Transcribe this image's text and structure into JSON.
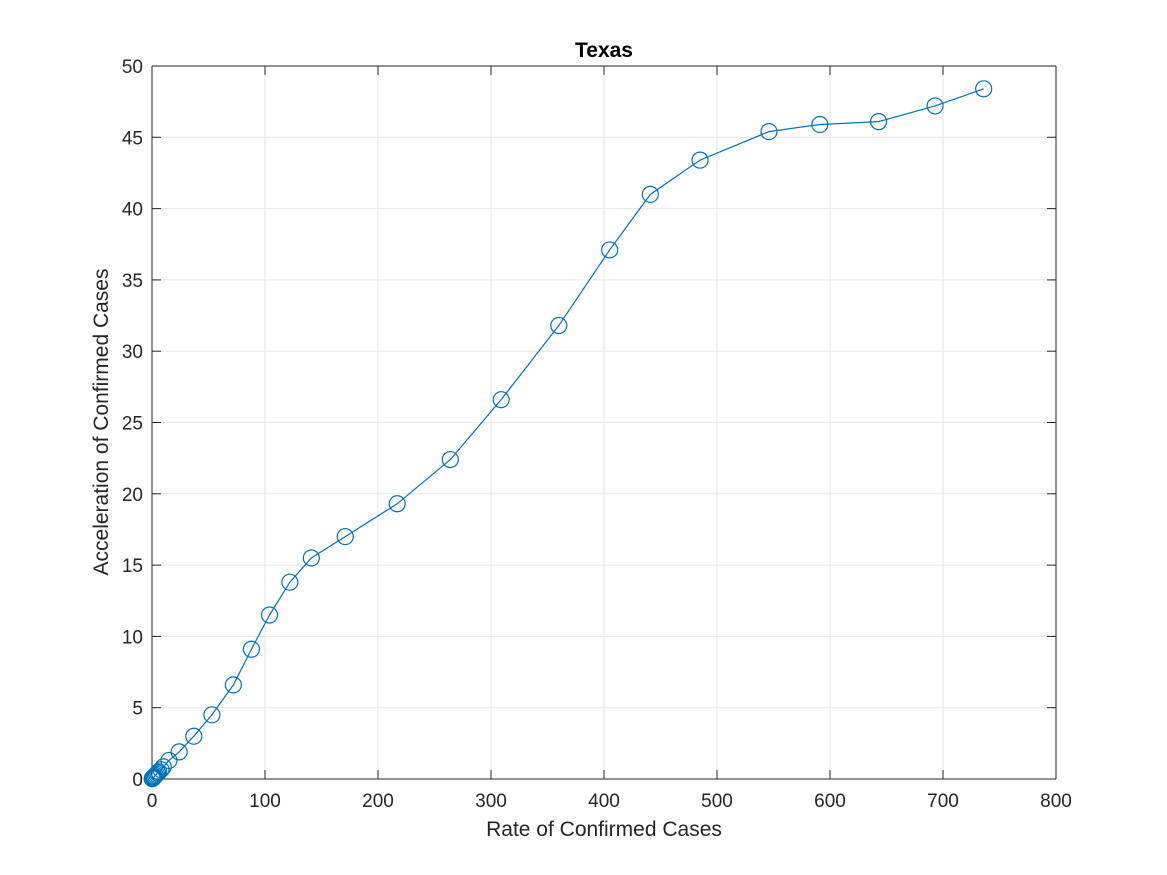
{
  "chart_data": {
    "type": "line",
    "title": "Texas",
    "xlabel": "Rate of Confirmed Cases",
    "ylabel": "Acceleration of Confirmed Cases",
    "xlim": [
      0,
      800
    ],
    "ylim": [
      0,
      50
    ],
    "xticks": [
      0,
      100,
      200,
      300,
      400,
      500,
      600,
      700,
      800
    ],
    "yticks": [
      0,
      5,
      10,
      15,
      20,
      25,
      30,
      35,
      40,
      45,
      50
    ],
    "grid": true,
    "legend": "none",
    "marker": "circle",
    "series": [
      {
        "color": "#0072BD",
        "x": [
          0.2,
          0.5,
          1,
          1.5,
          2,
          3,
          4,
          5,
          6,
          8,
          10,
          15,
          24,
          37,
          53,
          72,
          88,
          104,
          122,
          141,
          171,
          217,
          264,
          309,
          360,
          405,
          441,
          485,
          546,
          591,
          643,
          693,
          736
        ],
        "y": [
          0.02,
          0.05,
          0.08,
          0.12,
          0.18,
          0.25,
          0.33,
          0.42,
          0.5,
          0.65,
          0.85,
          1.3,
          1.9,
          3.0,
          4.5,
          6.6,
          9.1,
          11.5,
          13.8,
          15.5,
          17.0,
          19.3,
          22.4,
          26.6,
          31.8,
          37.1,
          41.0,
          43.4,
          45.4,
          45.9,
          46.1,
          47.2,
          48.4
        ]
      }
    ]
  }
}
